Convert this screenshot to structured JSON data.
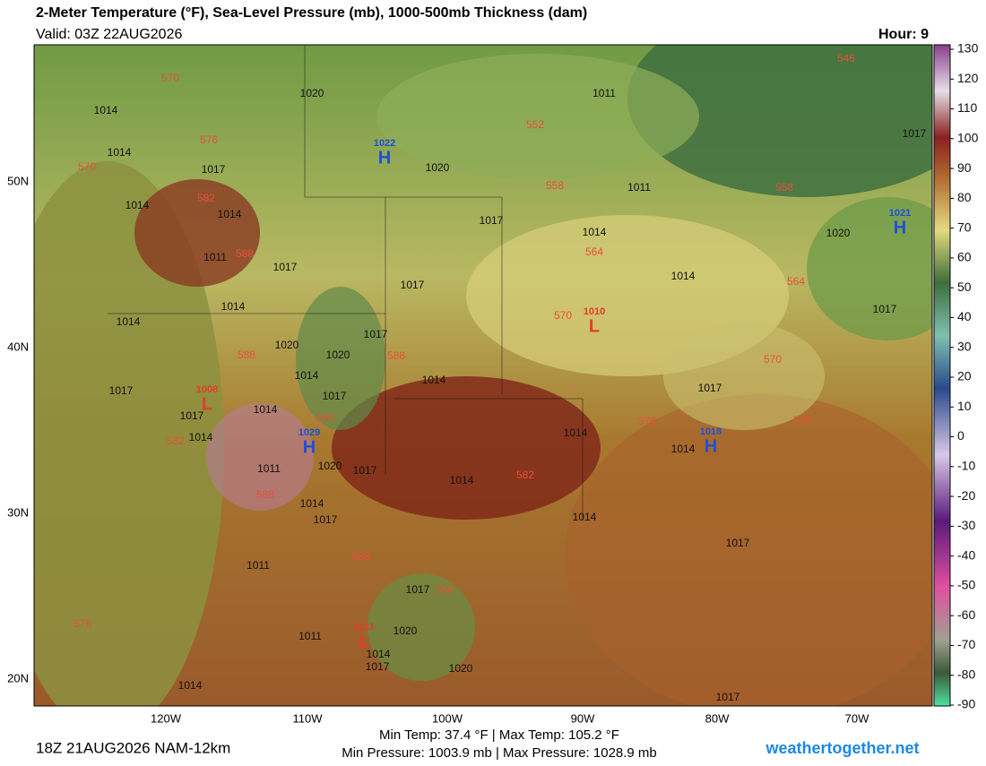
{
  "header": {
    "title": "2-Meter Temperature (°F), Sea-Level Pressure (mb), 1000-500mb Thickness (dam)",
    "valid": "Valid: 03Z 22AUG2026",
    "hour": "Hour: 9"
  },
  "map": {
    "lat_labels": [
      "50N",
      "40N",
      "30N",
      "20N"
    ],
    "lon_labels": [
      "120W",
      "110W",
      "100W",
      "90W",
      "80W",
      "70W"
    ],
    "isobar_labels": [
      "1020",
      "1011",
      "1014",
      "1014",
      "1017",
      "1020",
      "1011",
      "1014",
      "1014",
      "1017",
      "1011",
      "1017",
      "1017",
      "1014",
      "1014",
      "1020",
      "1017",
      "1020",
      "1014",
      "1017",
      "1014",
      "1017",
      "1017",
      "1014",
      "1014",
      "1011",
      "1020",
      "1017",
      "1014",
      "1014",
      "1014",
      "1017",
      "1020",
      "1017",
      "1014",
      "1017",
      "1014",
      "1017",
      "1011",
      "1017",
      "1020",
      "1011",
      "1014",
      "1017",
      "1020",
      "1014",
      "1017",
      "1014",
      "1014",
      "1017"
    ],
    "thickness_labels": [
      "570",
      "546",
      "552",
      "576",
      "570",
      "558",
      "558",
      "582",
      "564",
      "588",
      "564",
      "570",
      "588",
      "588",
      "570",
      "576",
      "576",
      "588",
      "582",
      "582",
      "588",
      "588",
      "588",
      "576"
    ],
    "centers": [
      {
        "type": "H",
        "pressure": "1022"
      },
      {
        "type": "H",
        "pressure": "1021"
      },
      {
        "type": "L",
        "pressure": "1010"
      },
      {
        "type": "L",
        "pressure": "1008"
      },
      {
        "type": "H",
        "pressure": "1029"
      },
      {
        "type": "H",
        "pressure": "1018"
      },
      {
        "type": "L",
        "pressure": "1011"
      }
    ]
  },
  "colorbar": {
    "ticks": [
      130,
      120,
      110,
      100,
      90,
      80,
      70,
      60,
      50,
      40,
      30,
      20,
      10,
      0,
      -10,
      -20,
      -30,
      -40,
      -50,
      -60,
      -70,
      -80,
      -90
    ]
  },
  "footer": {
    "run": "18Z 21AUG2026 NAM-12km",
    "temps": "Min Temp:  37.4 °F | Max Temp: 105.2 °F",
    "pressures": "Min Pressure: 1003.9 mb | Max Pressure: 1028.9 mb",
    "site": "weathertogether.net"
  }
}
